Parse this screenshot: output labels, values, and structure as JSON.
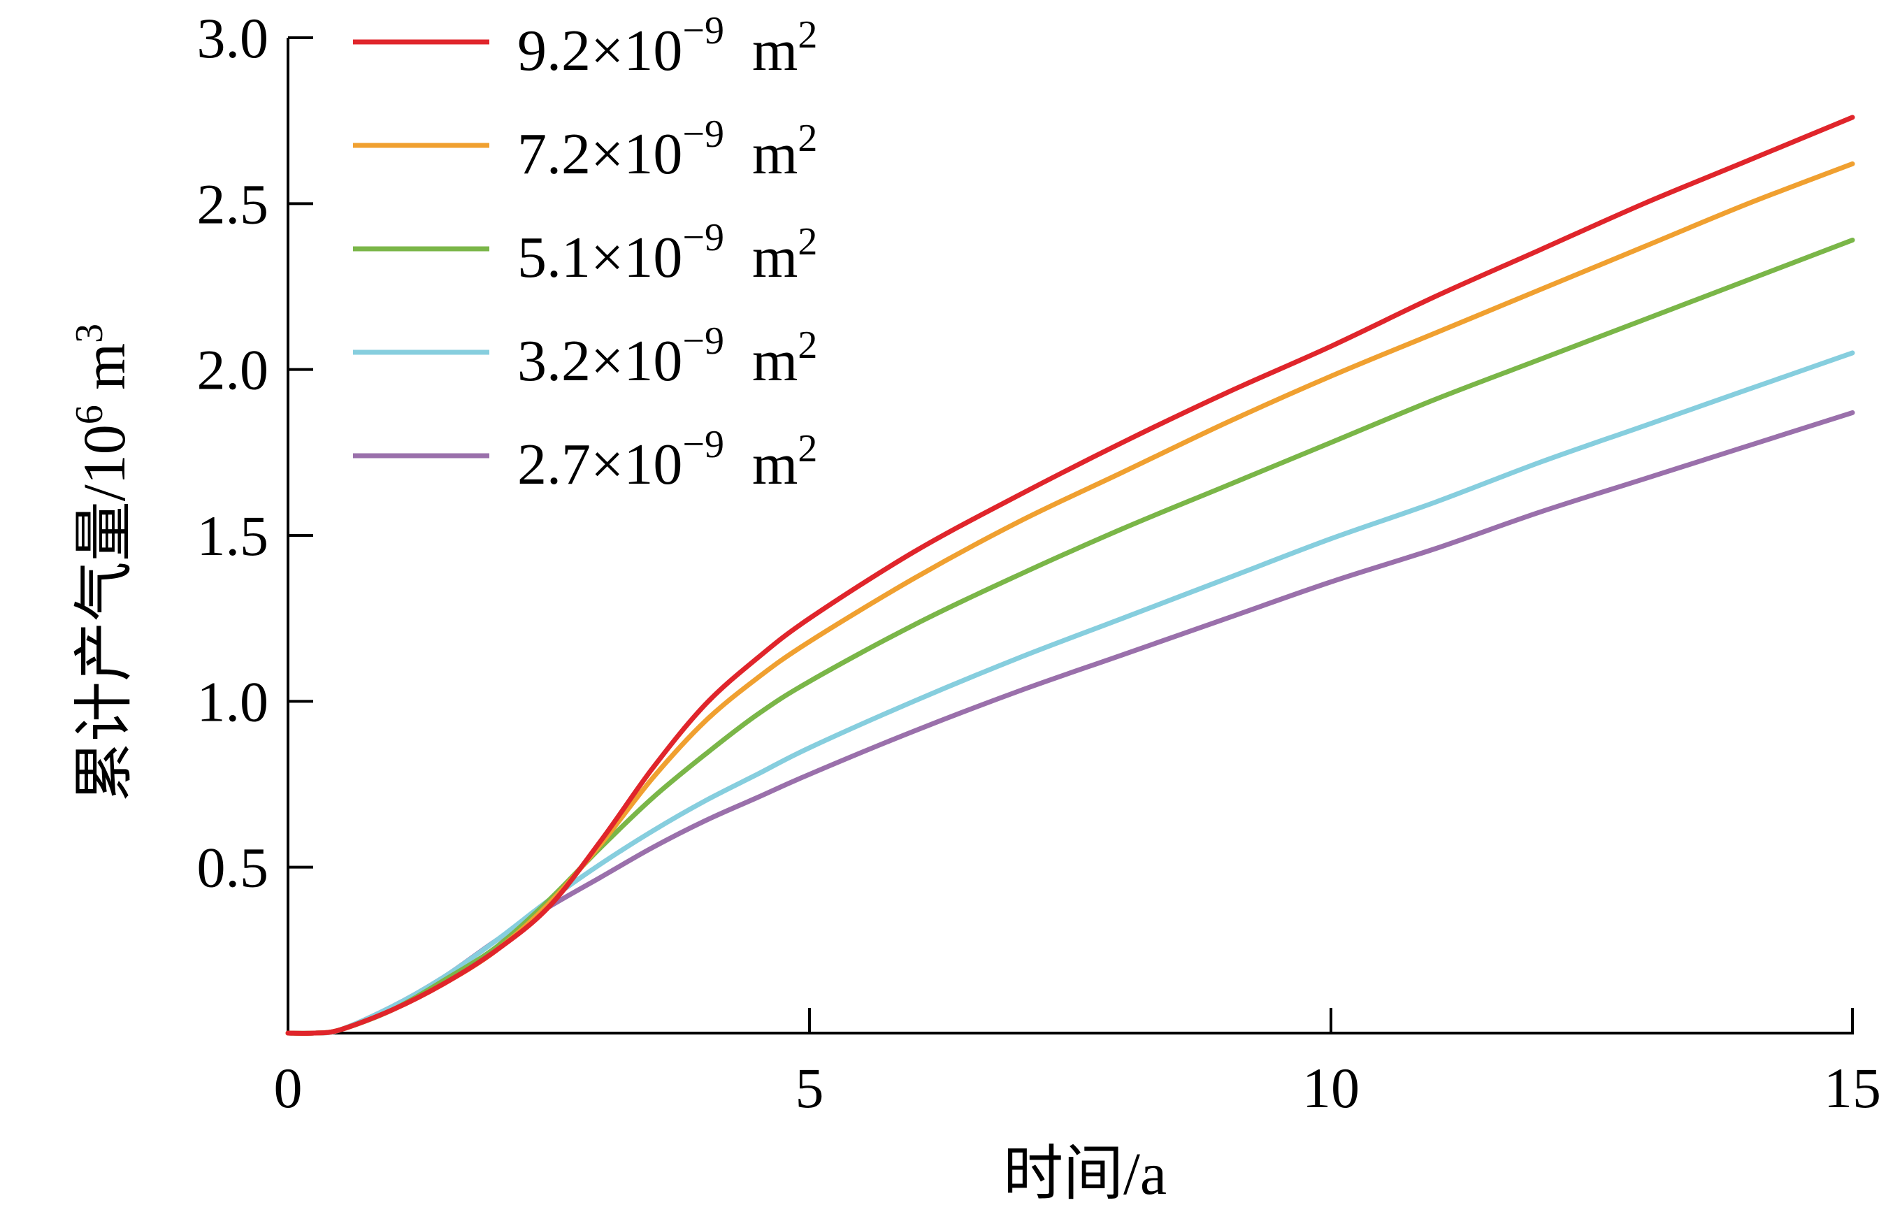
{
  "chart_data": {
    "type": "line",
    "xlabel": "时间/a",
    "ylabel": {
      "prefix": "累计产气量/10",
      "exp": "6",
      "unit": "m",
      "unit_exp": "3"
    },
    "xlim": [
      0,
      15
    ],
    "ylim": [
      0,
      3.0
    ],
    "xticks": [
      {
        "value": 0,
        "label": "0"
      },
      {
        "value": 5,
        "label": "5"
      },
      {
        "value": 10,
        "label": "10"
      },
      {
        "value": 15,
        "label": "15"
      }
    ],
    "yticks": [
      {
        "value": 0.5,
        "label": "0.5"
      },
      {
        "value": 1.0,
        "label": "1.0"
      },
      {
        "value": 1.5,
        "label": "1.5"
      },
      {
        "value": 2.0,
        "label": "2.0"
      },
      {
        "value": 2.5,
        "label": "2.5"
      },
      {
        "value": 3.0,
        "label": "3.0"
      }
    ],
    "grid": false,
    "legend_position": "top-left",
    "x": [
      0,
      0.25,
      0.5,
      1,
      1.5,
      2,
      2.5,
      3,
      3.5,
      4,
      4.5,
      5,
      6,
      7,
      8,
      9,
      10,
      11,
      12,
      13,
      14,
      15
    ],
    "series": [
      {
        "name": {
          "base": "9.2×10",
          "exp": "−9",
          "unit": "m",
          "unit_exp": "2"
        },
        "color": "#e0252b",
        "values": [
          0,
          0,
          0.01,
          0.07,
          0.15,
          0.25,
          0.38,
          0.58,
          0.8,
          0.99,
          1.13,
          1.25,
          1.45,
          1.62,
          1.78,
          1.93,
          2.07,
          2.22,
          2.36,
          2.5,
          2.63,
          2.76
        ]
      },
      {
        "name": {
          "base": "7.2×10",
          "exp": "−9",
          "unit": "m",
          "unit_exp": "2"
        },
        "color": "#f0a030",
        "values": [
          0,
          0,
          0.01,
          0.07,
          0.15,
          0.25,
          0.39,
          0.57,
          0.77,
          0.94,
          1.07,
          1.18,
          1.37,
          1.54,
          1.69,
          1.84,
          1.98,
          2.11,
          2.24,
          2.37,
          2.5,
          2.62
        ]
      },
      {
        "name": {
          "base": "5.1×10",
          "exp": "−9",
          "unit": "m",
          "unit_exp": "2"
        },
        "color": "#7ab648",
        "values": [
          0,
          0,
          0.01,
          0.07,
          0.16,
          0.26,
          0.4,
          0.56,
          0.71,
          0.84,
          0.96,
          1.06,
          1.23,
          1.38,
          1.52,
          1.65,
          1.78,
          1.91,
          2.03,
          2.15,
          2.27,
          2.39
        ]
      },
      {
        "name": {
          "base": "3.2×10",
          "exp": "−9",
          "unit": "m",
          "unit_exp": "2"
        },
        "color": "#86cede",
        "values": [
          0,
          0,
          0.01,
          0.08,
          0.17,
          0.28,
          0.4,
          0.51,
          0.61,
          0.7,
          0.78,
          0.86,
          1.0,
          1.13,
          1.25,
          1.37,
          1.49,
          1.6,
          1.72,
          1.83,
          1.94,
          2.05
        ]
      },
      {
        "name": {
          "base": "2.7×10",
          "exp": "−9",
          "unit": "m",
          "unit_exp": "2"
        },
        "color": "#9a70ab",
        "values": [
          0,
          0,
          0.01,
          0.08,
          0.17,
          0.28,
          0.38,
          0.47,
          0.56,
          0.64,
          0.71,
          0.78,
          0.91,
          1.03,
          1.14,
          1.25,
          1.36,
          1.46,
          1.57,
          1.67,
          1.77,
          1.87
        ]
      }
    ]
  }
}
